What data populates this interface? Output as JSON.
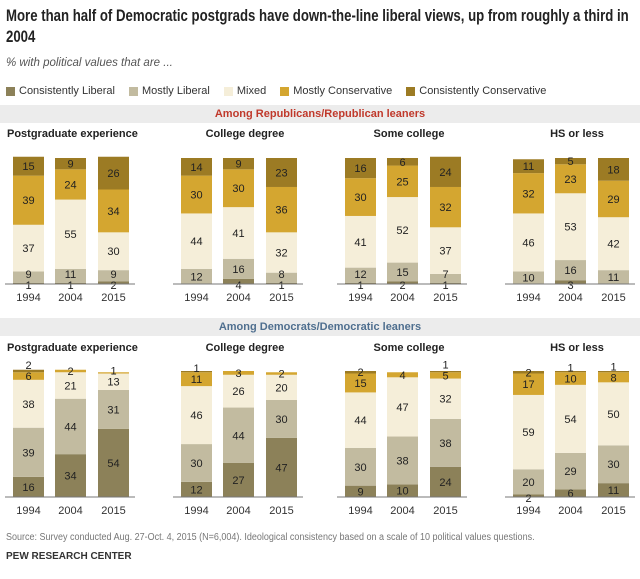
{
  "title": "More than half of Democratic postgrads have down-the-line  liberal views, up from roughly a third in 2004",
  "subtitle": "% with political values that are ...",
  "source": "Source: Survey conducted Aug. 27-Oct. 4, 2015 (N=6,004). Ideological consistency based on a scale of 10 political values questions.",
  "org": "PEW RESEARCH CENTER",
  "colors": {
    "Consistently Liberal": "#8c8159",
    "Mostly Liberal": "#c2bba0",
    "Mixed": "#f5eed9",
    "Mostly Conservative": "#d4a630",
    "Consistently Conservative": "#9c7b24",
    "rep_header": "#c0392b",
    "dem_header": "#4f6f8f"
  },
  "chart_data": {
    "type": "bar",
    "stacked": true,
    "legend": [
      "Consistently Liberal",
      "Mostly Liberal",
      "Mixed",
      "Mostly Conservative",
      "Consistently Conservative"
    ],
    "categories": [
      "1994",
      "2004",
      "2015"
    ],
    "groups": [
      {
        "label": "Among Republicans/Republican leaners",
        "panels": [
          {
            "title": "Postgraduate experience",
            "values": [
              [
                1,
                9,
                37,
                39,
                15
              ],
              [
                1,
                11,
                55,
                24,
                9
              ],
              [
                2,
                9,
                30,
                34,
                26
              ]
            ]
          },
          {
            "title": "College degree",
            "values": [
              [
                0,
                12,
                44,
                30,
                14
              ],
              [
                4,
                16,
                41,
                30,
                9
              ],
              [
                1,
                8,
                32,
                36,
                23
              ]
            ]
          },
          {
            "title": "Some college",
            "values": [
              [
                1,
                12,
                41,
                30,
                16
              ],
              [
                2,
                15,
                52,
                25,
                6
              ],
              [
                1,
                7,
                37,
                32,
                24
              ]
            ]
          },
          {
            "title": "HS or less",
            "values": [
              [
                0,
                10,
                46,
                32,
                11
              ],
              [
                3,
                16,
                53,
                23,
                5
              ],
              [
                0,
                11,
                42,
                29,
                18
              ]
            ]
          }
        ]
      },
      {
        "label": "Among Democrats/Democratic leaners",
        "panels": [
          {
            "title": "Postgraduate experience",
            "values": [
              [
                16,
                39,
                38,
                6,
                2
              ],
              [
                34,
                44,
                21,
                2,
                0
              ],
              [
                54,
                31,
                13,
                1,
                0
              ]
            ]
          },
          {
            "title": "College degree",
            "values": [
              [
                12,
                30,
                46,
                11,
                1
              ],
              [
                27,
                44,
                26,
                3,
                0
              ],
              [
                47,
                30,
                20,
                2,
                0
              ]
            ]
          },
          {
            "title": "Some college",
            "values": [
              [
                9,
                30,
                44,
                15,
                2
              ],
              [
                10,
                38,
                47,
                4,
                0
              ],
              [
                24,
                38,
                32,
                5,
                1
              ]
            ]
          },
          {
            "title": "HS or less",
            "values": [
              [
                2,
                20,
                59,
                17,
                2
              ],
              [
                6,
                29,
                54,
                10,
                1
              ],
              [
                11,
                30,
                50,
                8,
                1
              ]
            ]
          }
        ]
      }
    ]
  }
}
